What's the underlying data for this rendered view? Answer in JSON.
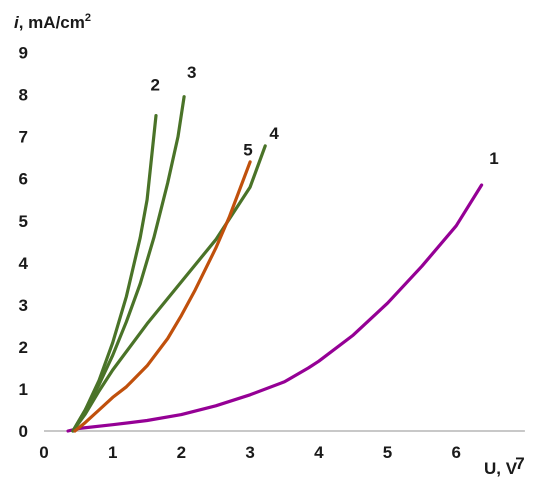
{
  "chart_data": {
    "type": "line",
    "ylabel_italic": "i",
    "ylabel_rest": ", mA/cm",
    "ylabel_superscript": "2",
    "xlabel": "U, V",
    "xlim": [
      0,
      7
    ],
    "ylim": [
      0,
      9
    ],
    "x_ticks": [
      "0",
      "1",
      "2",
      "3",
      "4",
      "5",
      "6"
    ],
    "x_tick_last": "7",
    "y_ticks": [
      "0",
      "1",
      "2",
      "3",
      "4",
      "5",
      "6",
      "7",
      "8",
      "9"
    ],
    "grid": false,
    "legend": "none",
    "series": [
      {
        "name": "1",
        "color": "#950095",
        "label_at": [
          6.55,
          6.35
        ],
        "points": [
          [
            0.35,
            0.0
          ],
          [
            0.5,
            0.06
          ],
          [
            1.0,
            0.15
          ],
          [
            1.5,
            0.25
          ],
          [
            2.0,
            0.39
          ],
          [
            2.5,
            0.6
          ],
          [
            3.0,
            0.86
          ],
          [
            3.5,
            1.17
          ],
          [
            3.85,
            1.5
          ],
          [
            4.0,
            1.66
          ],
          [
            4.5,
            2.28
          ],
          [
            5.0,
            3.04
          ],
          [
            5.5,
            3.92
          ],
          [
            6.0,
            4.88
          ],
          [
            6.37,
            5.85
          ]
        ]
      },
      {
        "name": "2",
        "color": "#4a7328",
        "label_at": [
          1.62,
          8.1
        ],
        "points": [
          [
            0.42,
            0.0
          ],
          [
            0.6,
            0.5
          ],
          [
            0.8,
            1.2
          ],
          [
            1.0,
            2.1
          ],
          [
            1.2,
            3.2
          ],
          [
            1.4,
            4.6
          ],
          [
            1.5,
            5.5
          ],
          [
            1.63,
            7.5
          ]
        ]
      },
      {
        "name": "3",
        "color": "#4a7328",
        "label_at": [
          2.15,
          8.4
        ],
        "points": [
          [
            0.42,
            0.0
          ],
          [
            0.6,
            0.5
          ],
          [
            0.8,
            1.1
          ],
          [
            1.0,
            1.8
          ],
          [
            1.2,
            2.6
          ],
          [
            1.4,
            3.5
          ],
          [
            1.6,
            4.6
          ],
          [
            1.8,
            5.9
          ],
          [
            1.95,
            7.0
          ],
          [
            2.04,
            7.95
          ]
        ]
      },
      {
        "name": "4",
        "color": "#4a7328",
        "label_at": [
          3.35,
          6.95
        ],
        "points": [
          [
            0.42,
            0.0
          ],
          [
            0.6,
            0.4
          ],
          [
            0.8,
            0.95
          ],
          [
            1.0,
            1.45
          ],
          [
            1.5,
            2.55
          ],
          [
            2.0,
            3.55
          ],
          [
            2.5,
            4.55
          ],
          [
            3.0,
            5.8
          ],
          [
            3.22,
            6.78
          ]
        ]
      },
      {
        "name": "5",
        "color": "#c0500c",
        "label_at": [
          2.97,
          6.55
        ],
        "points": [
          [
            0.45,
            0.0
          ],
          [
            0.6,
            0.2
          ],
          [
            0.8,
            0.5
          ],
          [
            1.0,
            0.8
          ],
          [
            1.2,
            1.05
          ],
          [
            1.5,
            1.55
          ],
          [
            1.8,
            2.2
          ],
          [
            2.0,
            2.75
          ],
          [
            2.2,
            3.35
          ],
          [
            2.5,
            4.35
          ],
          [
            2.7,
            5.1
          ],
          [
            2.85,
            5.75
          ],
          [
            3.0,
            6.4
          ]
        ]
      }
    ]
  }
}
